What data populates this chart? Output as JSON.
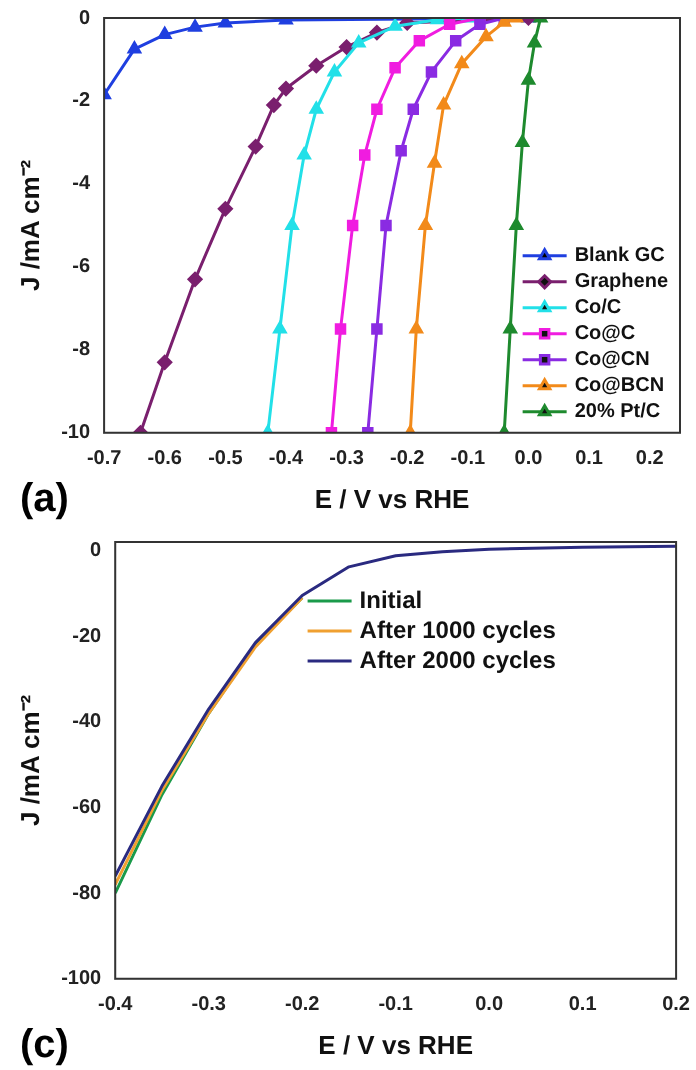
{
  "chart_data": [
    {
      "type": "line",
      "xlabel": "E / V vs RHE",
      "ylabel": "J /mA cm⁻²",
      "annotations": [
        "(a)"
      ],
      "xlim": [
        -0.7,
        0.25
      ],
      "xticks": [
        -0.7,
        -0.6,
        -0.5,
        -0.4,
        -0.3,
        -0.2,
        -0.1,
        {
          "value": 0,
          "label": "0.0"
        },
        0.1,
        0.2
      ],
      "ylim": [
        -10,
        0
      ],
      "yticks": [
        -10,
        -8,
        -6,
        -4,
        -2,
        0
      ],
      "grid": false,
      "legend": "bottom right",
      "line_style": "solid",
      "series": [
        {
          "name": "Blank GC",
          "color": "#1f3fe0",
          "marker": "triangle",
          "x": [
            -0.7,
            -0.65,
            -0.6,
            -0.55,
            -0.5,
            -0.4,
            0
          ],
          "values": [
            -1.85,
            -0.75,
            -0.4,
            -0.22,
            -0.12,
            -0.05,
            0
          ]
        },
        {
          "name": "Graphene",
          "color": "#7a1f6e",
          "marker": "diamond",
          "x": [
            -0.64,
            -0.6,
            -0.55,
            -0.5,
            -0.45,
            -0.42,
            -0.4,
            -0.35,
            -0.3,
            -0.25,
            -0.2,
            0
          ],
          "values": [
            -10,
            -8.3,
            -6.3,
            -4.6,
            -3.1,
            -2.1,
            -1.7,
            -1.15,
            -0.7,
            -0.35,
            -0.12,
            0
          ]
        },
        {
          "name": "Co/C",
          "color": "#22e0e8",
          "marker": "triangle",
          "x": [
            -0.43,
            -0.41,
            -0.39,
            -0.37,
            -0.35,
            -0.32,
            -0.28,
            -0.22,
            -0.15,
            -0.1
          ],
          "values": [
            -10,
            -7.5,
            -5,
            -3.3,
            -2.2,
            -1.3,
            -0.6,
            -0.2,
            -0.04,
            0
          ]
        },
        {
          "name": "Co@C",
          "color": "#f01ce0",
          "marker": "square",
          "x": [
            -0.325,
            -0.31,
            -0.29,
            -0.27,
            -0.25,
            -0.22,
            -0.18,
            -0.13,
            -0.08
          ],
          "values": [
            -10,
            -7.5,
            -5,
            -3.3,
            -2.2,
            -1.2,
            -0.55,
            -0.15,
            0
          ]
        },
        {
          "name": "Co@CN",
          "color": "#8a2be2",
          "marker": "square",
          "x": [
            -0.265,
            -0.25,
            -0.235,
            -0.21,
            -0.19,
            -0.16,
            -0.12,
            -0.08,
            -0.04
          ],
          "values": [
            -10,
            -7.5,
            -5,
            -3.2,
            -2.2,
            -1.3,
            -0.55,
            -0.15,
            0
          ]
        },
        {
          "name": "Co@BCN",
          "color": "#f28a1a",
          "marker": "triangle",
          "x": [
            -0.195,
            -0.185,
            -0.17,
            -0.155,
            -0.14,
            -0.11,
            -0.07,
            -0.04,
            -0.02
          ],
          "values": [
            -10,
            -7.5,
            -5,
            -3.5,
            -2.1,
            -1.1,
            -0.45,
            -0.1,
            0
          ]
        },
        {
          "name": "20% Pt/C",
          "color": "#1e8a2e",
          "marker": "triangle",
          "x": [
            -0.04,
            -0.03,
            -0.02,
            -0.01,
            0,
            0.01,
            0.02
          ],
          "values": [
            -10,
            -7.5,
            -5,
            -3,
            -1.5,
            -0.6,
            0
          ]
        }
      ]
    },
    {
      "type": "line",
      "xlabel": "E / V vs RHE",
      "ylabel": "J /mA cm⁻²",
      "annotations": [
        "(c)"
      ],
      "xlim": [
        -0.4,
        0.2
      ],
      "xticks": [
        -0.4,
        -0.3,
        -0.2,
        -0.1,
        {
          "value": 0,
          "label": "0.0"
        },
        0.1,
        0.2
      ],
      "ylim": [
        -100,
        2
      ],
      "yticks": [
        -100,
        -80,
        -60,
        -40,
        -20,
        0
      ],
      "grid": false,
      "legend": "top",
      "marker": "none",
      "line_style": "solid",
      "series": [
        {
          "name": "Initial",
          "color": "#1a9a4a",
          "x": [
            -0.4,
            -0.35,
            -0.3,
            -0.25,
            -0.2
          ],
          "values": [
            -80,
            -57,
            -38,
            -22,
            -11
          ]
        },
        {
          "name": "After 1000 cycles",
          "color": "#f0a030",
          "x": [
            -0.4,
            -0.35,
            -0.3,
            -0.25,
            -0.2
          ],
          "values": [
            -78,
            -56,
            -38,
            -22.5,
            -11
          ]
        },
        {
          "name": "After 2000 cycles",
          "color": "#2a2a80",
          "x": [
            -0.4,
            -0.35,
            -0.3,
            -0.25,
            -0.2,
            -0.15,
            -0.1,
            -0.05,
            0,
            0.1,
            0.2
          ],
          "values": [
            -76,
            -55,
            -37,
            -21.5,
            -10.5,
            -3.8,
            -1.2,
            -0.3,
            0.3,
            0.8,
            1
          ]
        }
      ]
    }
  ]
}
